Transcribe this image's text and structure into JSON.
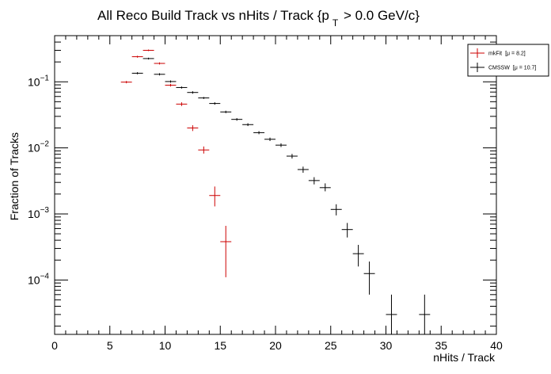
{
  "chart_data": {
    "type": "scatter",
    "title": {
      "main": "All Reco Build Track vs nHits / Track {p",
      "sub": "T",
      "tail": " > 0.0 GeV/c}"
    },
    "xlabel": "nHits / Track",
    "ylabel": "Fraction of Tracks",
    "xlim": [
      0,
      40
    ],
    "ylim": [
      1.5e-05,
      0.5
    ],
    "yscale": "log",
    "xticks": [
      0,
      5,
      10,
      15,
      20,
      25,
      30,
      35,
      40
    ],
    "yticks": [
      {
        "value": 0.1,
        "base": "10",
        "exp": "−1"
      },
      {
        "value": 0.01,
        "base": "10",
        "exp": "−2"
      },
      {
        "value": 0.001,
        "base": "10",
        "exp": "−3"
      },
      {
        "value": 0.0001,
        "base": "10",
        "exp": "−4"
      }
    ],
    "grid": false,
    "legend_position": "top-right",
    "series": [
      {
        "name": "mkFit",
        "legend_stat": "[μ =  8.2]",
        "color": "#cc0000",
        "points": [
          {
            "x": 6.5,
            "y": 0.099,
            "ylo": 0.095,
            "yhi": 0.103
          },
          {
            "x": 7.5,
            "y": 0.24,
            "ylo": 0.232,
            "yhi": 0.248
          },
          {
            "x": 8.5,
            "y": 0.3,
            "ylo": 0.292,
            "yhi": 0.308
          },
          {
            "x": 9.5,
            "y": 0.19,
            "ylo": 0.183,
            "yhi": 0.197
          },
          {
            "x": 10.5,
            "y": 0.089,
            "ylo": 0.085,
            "yhi": 0.093
          },
          {
            "x": 11.5,
            "y": 0.046,
            "ylo": 0.043,
            "yhi": 0.049
          },
          {
            "x": 12.5,
            "y": 0.02,
            "ylo": 0.018,
            "yhi": 0.022
          },
          {
            "x": 13.5,
            "y": 0.0093,
            "ylo": 0.0082,
            "yhi": 0.0105
          },
          {
            "x": 14.5,
            "y": 0.0019,
            "ylo": 0.0013,
            "yhi": 0.0026
          },
          {
            "x": 15.5,
            "y": 0.00038,
            "ylo": 0.00011,
            "yhi": 0.00066
          }
        ]
      },
      {
        "name": "CMSSW",
        "legend_stat": "[μ = 10.7]",
        "color": "#000000",
        "points": [
          {
            "x": 7.5,
            "y": 0.135,
            "ylo": 0.13,
            "yhi": 0.14
          },
          {
            "x": 8.5,
            "y": 0.225,
            "ylo": 0.218,
            "yhi": 0.232
          },
          {
            "x": 9.5,
            "y": 0.13,
            "ylo": 0.125,
            "yhi": 0.135
          },
          {
            "x": 10.5,
            "y": 0.101,
            "ylo": 0.097,
            "yhi": 0.105
          },
          {
            "x": 11.5,
            "y": 0.082,
            "ylo": 0.079,
            "yhi": 0.085
          },
          {
            "x": 12.5,
            "y": 0.069,
            "ylo": 0.066,
            "yhi": 0.072
          },
          {
            "x": 13.5,
            "y": 0.057,
            "ylo": 0.055,
            "yhi": 0.059
          },
          {
            "x": 14.5,
            "y": 0.047,
            "ylo": 0.045,
            "yhi": 0.049
          },
          {
            "x": 15.5,
            "y": 0.035,
            "ylo": 0.0335,
            "yhi": 0.0365
          },
          {
            "x": 16.5,
            "y": 0.027,
            "ylo": 0.0258,
            "yhi": 0.0282
          },
          {
            "x": 17.5,
            "y": 0.0225,
            "ylo": 0.0214,
            "yhi": 0.0236
          },
          {
            "x": 18.5,
            "y": 0.017,
            "ylo": 0.0161,
            "yhi": 0.0179
          },
          {
            "x": 19.5,
            "y": 0.0135,
            "ylo": 0.0127,
            "yhi": 0.0143
          },
          {
            "x": 20.5,
            "y": 0.011,
            "ylo": 0.0103,
            "yhi": 0.0117
          },
          {
            "x": 21.5,
            "y": 0.0075,
            "ylo": 0.0069,
            "yhi": 0.0081
          },
          {
            "x": 22.5,
            "y": 0.0047,
            "ylo": 0.0042,
            "yhi": 0.0052
          },
          {
            "x": 23.5,
            "y": 0.0032,
            "ylo": 0.0028,
            "yhi": 0.0036
          },
          {
            "x": 24.5,
            "y": 0.0025,
            "ylo": 0.0022,
            "yhi": 0.0029
          },
          {
            "x": 25.5,
            "y": 0.00117,
            "ylo": 0.00095,
            "yhi": 0.0014
          },
          {
            "x": 26.5,
            "y": 0.00058,
            "ylo": 0.00044,
            "yhi": 0.00073
          },
          {
            "x": 27.5,
            "y": 0.00025,
            "ylo": 0.00016,
            "yhi": 0.00034
          },
          {
            "x": 28.5,
            "y": 0.000125,
            "ylo": 6e-05,
            "yhi": 0.00019
          },
          {
            "x": 30.5,
            "y": 3e-05,
            "ylo": 1.5e-05,
            "yhi": 6e-05
          },
          {
            "x": 33.5,
            "y": 3e-05,
            "ylo": 1.5e-05,
            "yhi": 6e-05
          }
        ]
      }
    ]
  }
}
